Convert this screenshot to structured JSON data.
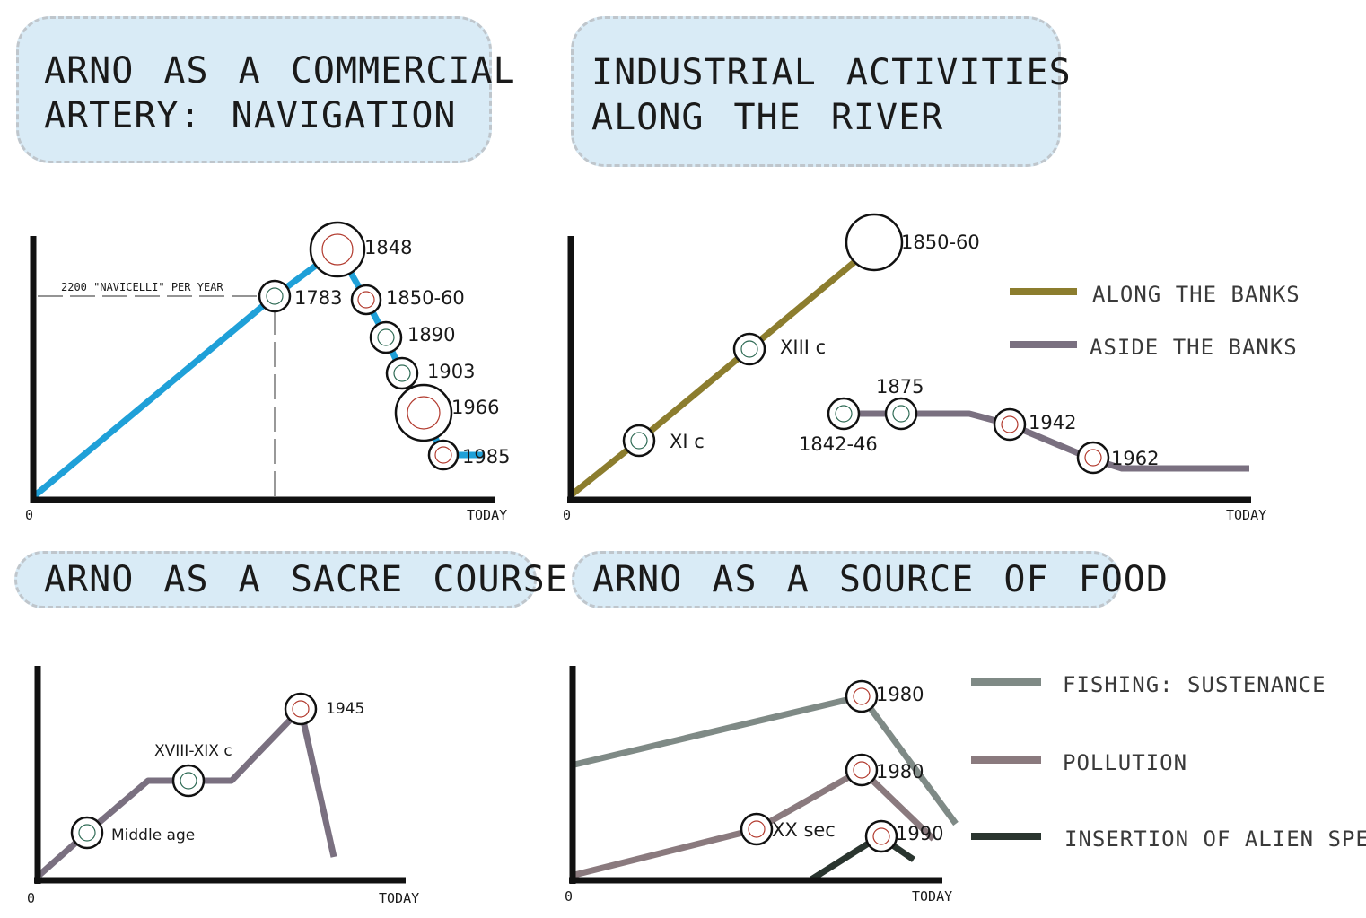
{
  "panels": [
    {
      "id": "navigation",
      "title_lines": [
        "ARNO AS A COMMERCIAL",
        "ARTERY: NAVIGATION"
      ],
      "axis": {
        "origin": "0",
        "end": "TODAY"
      },
      "reference_label": "2200 \"NAVICELLI\" PER YEAR"
    },
    {
      "id": "industrial",
      "title_lines": [
        "INDUSTRIAL ACTIVITIES",
        "ALONG THE RIVER"
      ],
      "axis": {
        "origin": "0",
        "end": "TODAY"
      },
      "legend": [
        {
          "label": "ALONG THE BANKS",
          "color": "#8c7d2e"
        },
        {
          "label": "ASIDE THE BANKS",
          "color": "#7a7080"
        }
      ]
    },
    {
      "id": "sacred",
      "title_lines": [
        "ARNO AS A SACRE COURSE"
      ],
      "axis": {
        "origin": "0",
        "end": "TODAY"
      }
    },
    {
      "id": "food",
      "title_lines": [
        "ARNO AS A SOURCE OF FOOD"
      ],
      "axis": {
        "origin": "0",
        "end": "TODAY"
      },
      "legend": [
        {
          "label": "FISHING: SUSTENANCE",
          "color": "#7f8a86"
        },
        {
          "label": "POLLUTION",
          "color": "#8a7a7e"
        },
        {
          "label": "INSERTION OF ALIEN SPE",
          "color": "#2a352f"
        }
      ]
    }
  ],
  "chart_data": [
    {
      "type": "line",
      "title": "ARNO AS A COMMERCIAL ARTERY: NAVIGATION",
      "series": [
        {
          "color": "#1fa0d8",
          "milestones": [
            "1783",
            "1848",
            "1850-60",
            "1890",
            "1903",
            "1966",
            "1985"
          ]
        }
      ]
    },
    {
      "type": "line",
      "title": "INDUSTRIAL ACTIVITIES ALONG THE RIVER",
      "series": [
        {
          "name": "ALONG THE BANKS",
          "color": "#8c7d2e",
          "milestones": [
            "XI c",
            "XIII c",
            "1850-60"
          ]
        },
        {
          "name": "ASIDE THE BANKS",
          "color": "#7a7080",
          "milestones": [
            "1842-46",
            "1875",
            "1942",
            "1962"
          ]
        }
      ]
    },
    {
      "type": "line",
      "title": "ARNO AS A SACRE COURSE",
      "series": [
        {
          "color": "#7a7080",
          "milestones": [
            "Middle age",
            "XVIII-XIX c",
            "1945"
          ]
        }
      ]
    },
    {
      "type": "line",
      "title": "ARNO AS A SOURCE OF FOOD",
      "series": [
        {
          "name": "FISHING: SUSTENANCE",
          "color": "#7f8a86",
          "milestones": [
            "1980"
          ]
        },
        {
          "name": "POLLUTION",
          "color": "#8a7a7e",
          "milestones": [
            "XX sec",
            "1980"
          ]
        },
        {
          "name": "INSERTION OF ALIEN SPE",
          "color": "#2a352f",
          "milestones": [
            "1990"
          ]
        }
      ]
    }
  ]
}
